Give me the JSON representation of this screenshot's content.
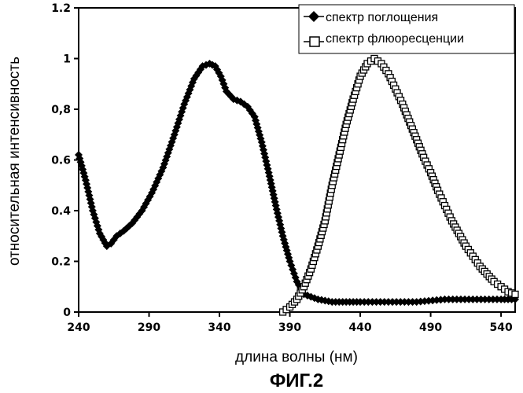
{
  "figure_caption": "ФИГ.2",
  "chart_data": {
    "type": "line",
    "xlabel": "длина волны (нм)",
    "ylabel": "относительная интенсивность",
    "xlim": [
      240,
      550
    ],
    "ylim": [
      0,
      1.2
    ],
    "x_ticks": [
      240,
      290,
      340,
      390,
      440,
      490,
      540
    ],
    "x_tick_labels": [
      "240",
      "290",
      "340",
      "390",
      "440",
      "490",
      "540"
    ],
    "y_ticks": [
      0,
      0.2,
      0.4,
      0.6,
      0.8,
      1,
      1.2
    ],
    "y_tick_labels": [
      "0",
      "0.2",
      "0.4",
      "0.6",
      "0,8",
      "1",
      "1.2"
    ],
    "grid": false,
    "legend_position": "top-right",
    "series": [
      {
        "name": "спектр поглощения",
        "marker": "filled-diamond",
        "color": "#000000",
        "x": [
          240,
          245,
          250,
          255,
          260,
          263,
          267,
          272,
          278,
          285,
          292,
          300,
          308,
          315,
          322,
          328,
          333,
          337,
          341,
          345,
          350,
          355,
          360,
          365,
          370,
          375,
          380,
          385,
          390,
          395,
          400,
          410,
          420,
          430,
          440,
          460,
          480,
          500,
          520,
          540,
          550
        ],
        "y": [
          0.62,
          0.52,
          0.4,
          0.31,
          0.26,
          0.27,
          0.3,
          0.32,
          0.35,
          0.4,
          0.47,
          0.57,
          0.7,
          0.82,
          0.92,
          0.97,
          0.98,
          0.97,
          0.93,
          0.87,
          0.84,
          0.83,
          0.81,
          0.77,
          0.67,
          0.55,
          0.42,
          0.3,
          0.2,
          0.12,
          0.07,
          0.05,
          0.04,
          0.04,
          0.04,
          0.04,
          0.04,
          0.05,
          0.05,
          0.05,
          0.05
        ]
      },
      {
        "name": "спектр флюоресценции",
        "marker": "open-square",
        "color": "#000000",
        "x": [
          385,
          390,
          395,
          400,
          405,
          410,
          415,
          420,
          425,
          430,
          435,
          440,
          445,
          450,
          455,
          460,
          465,
          470,
          475,
          480,
          485,
          490,
          495,
          500,
          505,
          510,
          515,
          520,
          525,
          530,
          535,
          540,
          545,
          550
        ],
        "y": [
          0.0,
          0.02,
          0.05,
          0.1,
          0.17,
          0.26,
          0.36,
          0.5,
          0.62,
          0.74,
          0.84,
          0.93,
          0.98,
          1.0,
          0.98,
          0.94,
          0.88,
          0.82,
          0.75,
          0.68,
          0.61,
          0.55,
          0.48,
          0.42,
          0.36,
          0.31,
          0.26,
          0.22,
          0.18,
          0.15,
          0.12,
          0.1,
          0.08,
          0.07
        ]
      }
    ]
  }
}
